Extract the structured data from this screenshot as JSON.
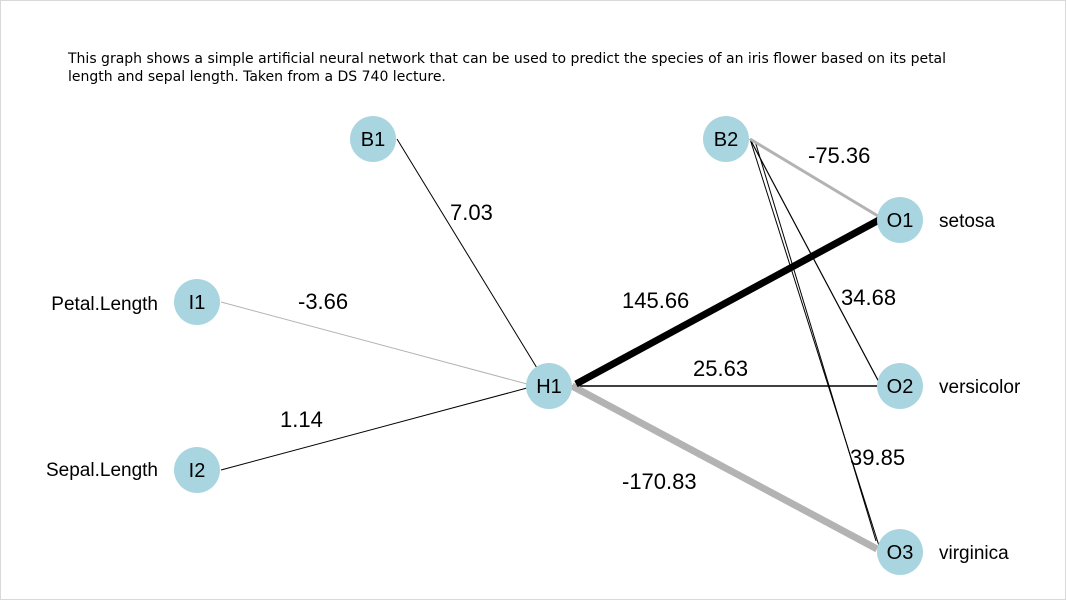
{
  "caption": {
    "line1": "This graph shows a simple artificial neural network that can be used to predict the species of an iris flower based on its petal",
    "line2": "length and sepal length.  Taken from a DS 740 lecture."
  },
  "nodes": {
    "B1": "B1",
    "B2": "B2",
    "I1": "I1",
    "I2": "I2",
    "H1": "H1",
    "O1": "O1",
    "O2": "O2",
    "O3": "O3"
  },
  "inputs": {
    "petal": "Petal.Length",
    "sepal": "Sepal.Length"
  },
  "outputs": {
    "setosa": "setosa",
    "versicolor": "versicolor",
    "virginica": "virginica"
  },
  "weights": {
    "b1_h1": "7.03",
    "i1_h1": "-3.66",
    "i2_h1": "1.14",
    "h1_o1": "145.66",
    "h1_o2": "25.63",
    "h1_o3": "-170.83",
    "b2_o1": "-75.36",
    "b2_o2": "34.68",
    "b2_o3": "39.85"
  },
  "colors": {
    "node_fill": "#a9d5e0",
    "positive_edge": "#000000",
    "negative_edge": "#b3b3b3"
  }
}
